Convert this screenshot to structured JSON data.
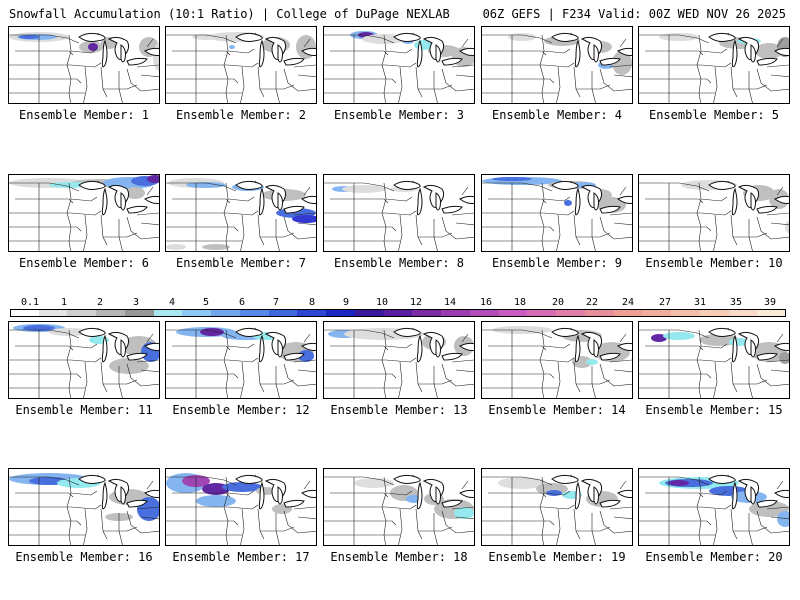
{
  "header": {
    "left": "Snowfall Accumulation (10:1 Ratio) | College of DuPage NEXLAB",
    "right": "06Z GEFS | F234 Valid: 00Z WED NOV 26 2025"
  },
  "legend": {
    "labels": [
      "0.1",
      "1",
      "2",
      "3",
      "4",
      "5",
      "6",
      "7",
      "8",
      "9",
      "10",
      "12",
      "14",
      "16",
      "18",
      "20",
      "22",
      "24",
      "27",
      "31",
      "35",
      "39"
    ],
    "colors": [
      "#ffffff",
      "#e4e4e4",
      "#cfcfcf",
      "#b4b4b4",
      "#969696",
      "#a7e8f0",
      "#8cc8f4",
      "#6fa6ec",
      "#5888e6",
      "#3f68dc",
      "#2a46d2",
      "#1a26c2",
      "#3a1a9a",
      "#5a1c9e",
      "#7a2aa6",
      "#9a3cb0",
      "#b24cb8",
      "#c95cc0",
      "#d66cb4",
      "#df7ea6",
      "#e68f9a",
      "#ec9f92",
      "#f0ae9a",
      "#f3bfa6",
      "#f6cdb6",
      "#f8dac6",
      "#faead8"
    ]
  },
  "panels": [
    {
      "label": "Ensemble Member: 1"
    },
    {
      "label": "Ensemble Member: 2"
    },
    {
      "label": "Ensemble Member: 3"
    },
    {
      "label": "Ensemble Member: 4"
    },
    {
      "label": "Ensemble Member: 5"
    },
    {
      "label": "Ensemble Member: 6"
    },
    {
      "label": "Ensemble Member: 7"
    },
    {
      "label": "Ensemble Member: 8"
    },
    {
      "label": "Ensemble Member: 9"
    },
    {
      "label": "Ensemble Member: 10"
    },
    {
      "label": "Ensemble Member: 11"
    },
    {
      "label": "Ensemble Member: 12"
    },
    {
      "label": "Ensemble Member: 13"
    },
    {
      "label": "Ensemble Member: 14"
    },
    {
      "label": "Ensemble Member: 15"
    },
    {
      "label": "Ensemble Member: 16"
    },
    {
      "label": "Ensemble Member: 17"
    },
    {
      "label": "Ensemble Member: 18"
    },
    {
      "label": "Ensemble Member: 19"
    },
    {
      "label": "Ensemble Member: 20"
    }
  ]
}
